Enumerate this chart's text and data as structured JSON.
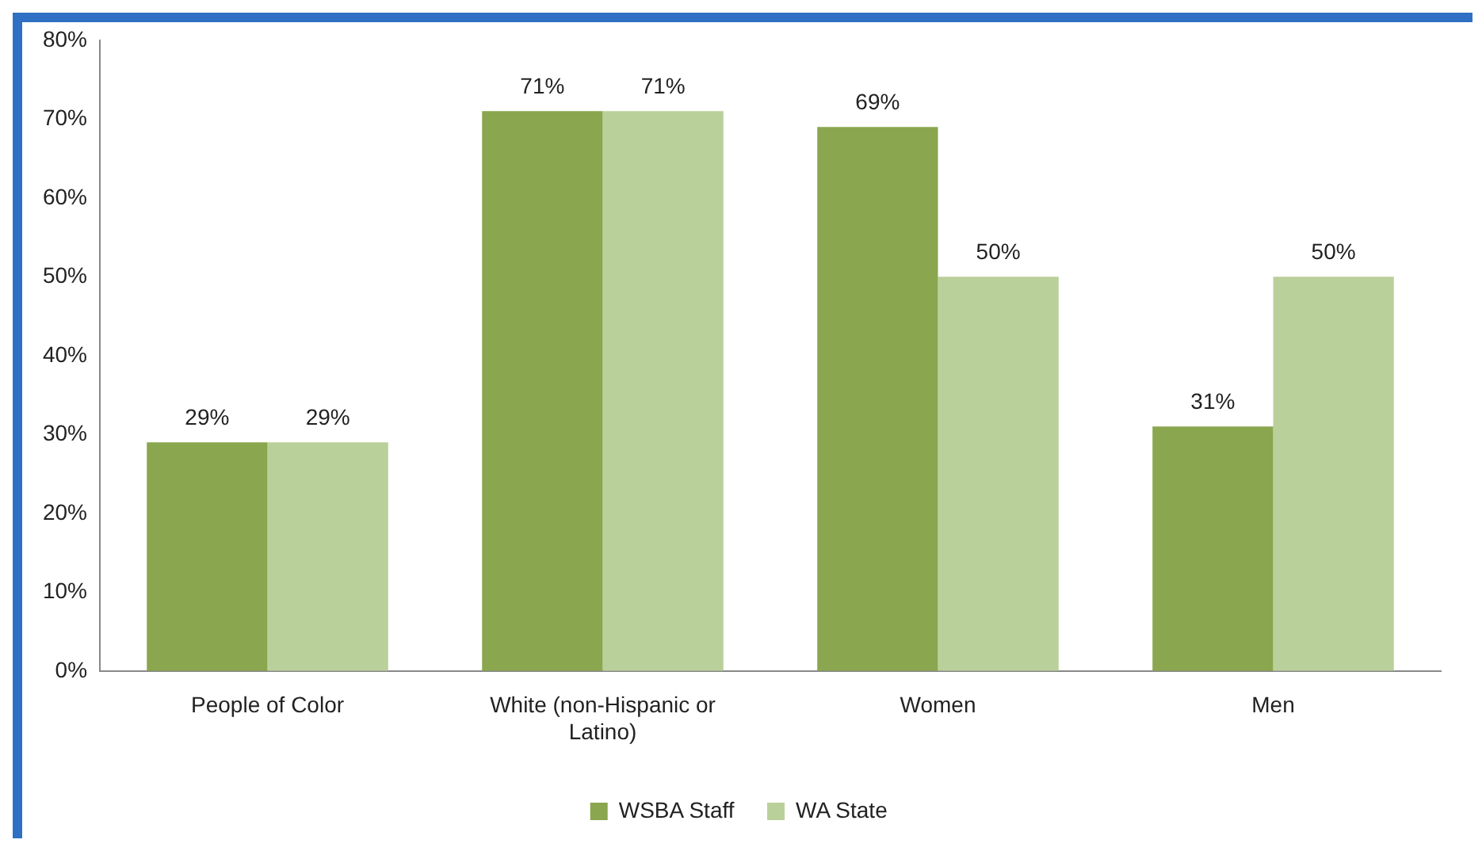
{
  "chart_data": {
    "type": "bar",
    "categories": [
      "People of Color",
      "White (non-Hispanic or Latino)",
      "Women",
      "Men"
    ],
    "series": [
      {
        "name": "WSBA Staff",
        "color": "#8aa64e",
        "values": [
          29,
          71,
          69,
          31
        ]
      },
      {
        "name": "WA State",
        "color": "#bad09a",
        "values": [
          29,
          71,
          50,
          50
        ]
      }
    ],
    "value_labels": [
      [
        "29%",
        "71%",
        "69%",
        "31%"
      ],
      [
        "29%",
        "71%",
        "50%",
        "50%"
      ]
    ],
    "ylim": [
      0,
      80
    ],
    "yticks": [
      {
        "value": 0,
        "label": "0%"
      },
      {
        "value": 10,
        "label": "10%"
      },
      {
        "value": 20,
        "label": "20%"
      },
      {
        "value": 30,
        "label": "30%"
      },
      {
        "value": 40,
        "label": "40%"
      },
      {
        "value": 50,
        "label": "50%"
      },
      {
        "value": 60,
        "label": "60%"
      },
      {
        "value": 70,
        "label": "70%"
      },
      {
        "value": 80,
        "label": "80%"
      }
    ],
    "grid": false,
    "legend": "bottom"
  }
}
